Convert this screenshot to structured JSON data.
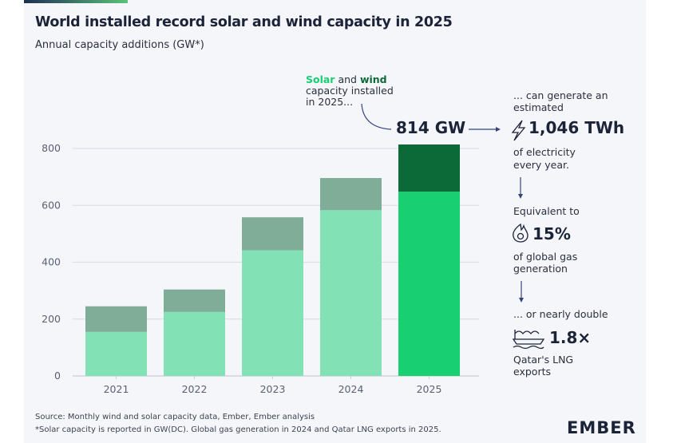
{
  "title": "World installed record solar and wind capacity in 2025",
  "subtitle": "Annual capacity additions (GW*)",
  "chart_data": {
    "type": "bar",
    "stacked": true,
    "categories": [
      "2021",
      "2022",
      "2023",
      "2024",
      "2025"
    ],
    "series": [
      {
        "name": "Solar",
        "values": [
          155,
          225,
          442,
          583,
          648
        ]
      },
      {
        "name": "Wind",
        "values": [
          90,
          79,
          116,
          113,
          166
        ]
      }
    ],
    "totals": [
      245,
      304,
      558,
      696,
      814
    ],
    "ylim": [
      0,
      800
    ],
    "yticks": [
      0,
      200,
      400,
      600,
      800
    ],
    "grid": true,
    "colors": {
      "solar": "#82e2b5",
      "wind": "#80ad97",
      "solar_highlight": "#18cf72",
      "wind_highlight": "#0c6a38"
    }
  },
  "annotations": {
    "solar_word": "Solar",
    "and_word": " and ",
    "wind_word": "wind",
    "line2": "capacity installed",
    "line3": "in 2025...",
    "total": "814 GW",
    "generate_1": "... can generate an",
    "generate_2": "estimated",
    "twh": "1,046 TWh",
    "elec_1": "of electricity",
    "elec_2": "every year.",
    "equiv": "Equivalent to",
    "pct": "15%",
    "gas_1": "of global gas",
    "gas_2": "generation",
    "double": "... or nearly double",
    "mult": "1.8×",
    "lng_1": "Qatar's LNG",
    "lng_2": "exports"
  },
  "footer": {
    "source": "Source: Monthly wind and solar capacity data, Ember, Ember analysis",
    "note": "*Solar capacity is reported in GW(DC). Global gas generation in 2024 and Qatar LNG exports in 2025.",
    "logo": "EMBER"
  }
}
